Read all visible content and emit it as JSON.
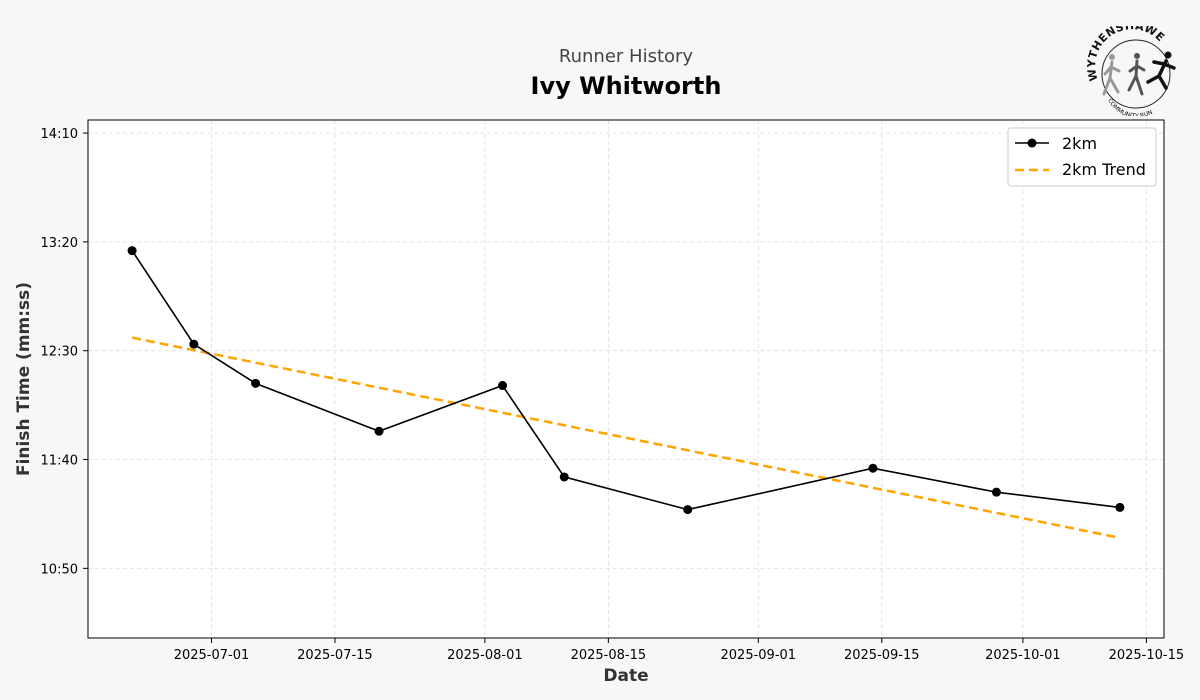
{
  "header": {
    "subtitle": "Runner History",
    "title": "Ivy Whitworth"
  },
  "logo": {
    "top_text": "WYTHENSHAWE",
    "bottom_text": "COMMUNITY RUN"
  },
  "chart_data": {
    "type": "line",
    "title": "Ivy Whitworth",
    "subtitle": "Runner History",
    "xlabel": "Date",
    "ylabel": "Finish Time (mm:ss)",
    "x_tick_labels": [
      "2025-07-01",
      "2025-07-15",
      "2025-08-01",
      "2025-08-15",
      "2025-09-01",
      "2025-09-15",
      "2025-10-01",
      "2025-10-15"
    ],
    "y_tick_labels": [
      "10:50",
      "11:40",
      "12:30",
      "13:20",
      "14:10"
    ],
    "xlim": [
      "2025-06-17",
      "2025-10-17"
    ],
    "ylim": [
      "10:18",
      "14:16"
    ],
    "grid": true,
    "legend_position": "top-right",
    "series": [
      {
        "name": "2km",
        "color": "#000000",
        "style": "solid-with-markers",
        "points": [
          {
            "x": "2025-06-22",
            "y": "13:16"
          },
          {
            "x": "2025-06-29",
            "y": "12:33"
          },
          {
            "x": "2025-07-06",
            "y": "12:15"
          },
          {
            "x": "2025-07-20",
            "y": "11:53"
          },
          {
            "x": "2025-08-03",
            "y": "12:14"
          },
          {
            "x": "2025-08-10",
            "y": "11:32"
          },
          {
            "x": "2025-08-24",
            "y": "11:17"
          },
          {
            "x": "2025-09-14",
            "y": "11:36"
          },
          {
            "x": "2025-09-28",
            "y": "11:25"
          },
          {
            "x": "2025-10-12",
            "y": "11:18"
          }
        ]
      },
      {
        "name": "2km Trend",
        "color": "#FFA500",
        "style": "dashed",
        "points": [
          {
            "x": "2025-06-22",
            "y": "12:36"
          },
          {
            "x": "2025-10-12",
            "y": "11:04"
          }
        ]
      }
    ]
  }
}
